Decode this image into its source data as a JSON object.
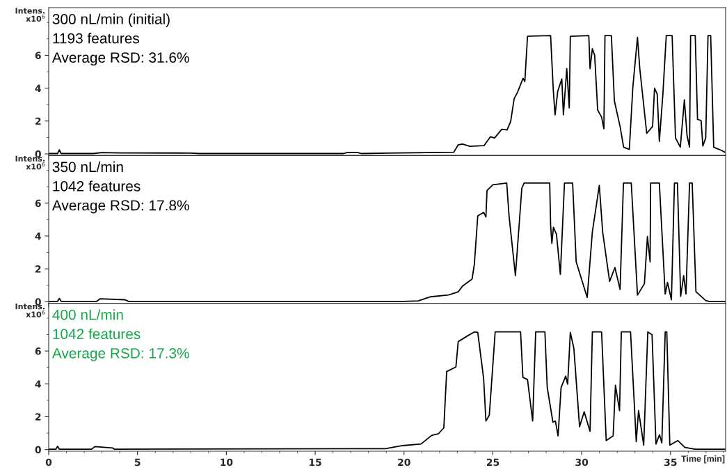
{
  "chart_data": [
    {
      "type": "line",
      "ylabel": "Intens.\nx10$^{6}$",
      "annotations": [
        "300 nL/min (initial)",
        "1193 features",
        "Average RSD: 31.6%"
      ],
      "xlim": [
        0,
        38.1
      ],
      "xticks": [
        0,
        5,
        10,
        15,
        20,
        25,
        30,
        35
      ],
      "ylim": [
        -0.1,
        8.9
      ],
      "yticks": [
        0,
        2,
        4,
        6
      ],
      "tick_labels": "y",
      "grid": false,
      "legend": false,
      "series": [
        {
          "color": "#000000",
          "x": [
            0,
            0.5,
            0.6,
            0.7,
            2.5,
            3,
            4,
            8,
            8.5,
            16.6,
            16.8,
            17.4,
            17.6,
            19.1,
            22.8,
            23.05,
            23.3,
            23.7,
            24.5,
            24.86,
            25.1,
            25.5,
            25.8,
            26.0,
            26.2,
            26.4,
            26.7,
            26.8,
            26.95,
            28.25,
            28.4,
            28.5,
            28.65,
            28.88,
            28.97,
            29.16,
            29.3,
            29.36,
            30.4,
            30.47,
            30.6,
            30.73,
            30.9,
            31.12,
            31.25,
            31.31,
            31.67,
            31.84,
            32.16,
            32.36,
            32.68,
            32.88,
            33.14,
            33.27,
            33.66,
            33.99,
            34.1,
            34.25,
            34.37,
            34.57,
            34.76,
            35.09,
            35.28,
            35.55,
            35.78,
            35.93,
            36.07,
            36.13,
            36.39,
            36.52,
            36.72,
            36.82,
            36.98,
            37.11,
            37.26,
            37.43,
            37.89,
            38.05
          ],
          "values": [
            0.02,
            0.02,
            0.25,
            0.02,
            0.02,
            0.08,
            0.06,
            0.05,
            0.02,
            0.02,
            0.08,
            0.08,
            0.02,
            0.05,
            0.1,
            0.55,
            0.6,
            0.46,
            0.5,
            1.04,
            0.97,
            1.5,
            1.46,
            1.96,
            3.36,
            3.78,
            4.6,
            4.4,
            7.16,
            7.2,
            3.9,
            2.38,
            3.8,
            4.56,
            2.38,
            5.19,
            2.8,
            7.16,
            7.2,
            5.19,
            6.4,
            6.0,
            2.66,
            2.24,
            1.53,
            7.2,
            7.2,
            3.22,
            1.67,
            0.41,
            0.27,
            4.07,
            7.09,
            5.19,
            1.25,
            1.67,
            4.0,
            3.64,
            0.76,
            3.64,
            7.2,
            7.2,
            0.97,
            0.41,
            3.29,
            1.11,
            0.41,
            7.2,
            7.2,
            2.1,
            2.03,
            0.48,
            0.97,
            7.2,
            7.2,
            0.41,
            0.2,
            0.1
          ]
        }
      ]
    },
    {
      "type": "line",
      "ylabel": "Intens.\nx10$^{6}$",
      "annotations": [
        "350 nL/min",
        "1042 features",
        "Average RSD: 17.8%"
      ],
      "xlim": [
        0,
        38.1
      ],
      "xticks": [
        0,
        5,
        10,
        15,
        20,
        25,
        30,
        35
      ],
      "ylim": [
        -0.1,
        8.9
      ],
      "yticks": [
        0,
        2,
        4,
        6
      ],
      "tick_labels": "y",
      "grid": false,
      "legend": false,
      "series": [
        {
          "color": "#000000",
          "x": [
            0,
            0.5,
            0.6,
            0.7,
            2.7,
            2.9,
            4.3,
            4.5,
            20.0,
            20.8,
            21.5,
            22.5,
            23.05,
            23.3,
            23.83,
            23.96,
            24.15,
            24.48,
            24.61,
            24.67,
            25.0,
            25.78,
            25.91,
            26.27,
            26.63,
            26.76,
            28.2,
            28.25,
            28.32,
            28.41,
            28.58,
            28.8,
            29.03,
            29.49,
            29.69,
            30.01,
            30.31,
            30.6,
            30.99,
            31.18,
            31.57,
            31.87,
            32.16,
            32.35,
            32.79,
            33.14,
            33.53,
            33.7,
            33.85,
            33.88,
            34.37,
            34.7,
            34.83,
            35.05,
            35.22,
            35.39,
            35.57,
            35.74,
            35.87,
            36.07,
            36.22,
            36.43,
            36.98,
            37.17,
            38.1
          ],
          "values": [
            0.02,
            0.02,
            0.2,
            0.02,
            0.02,
            0.18,
            0.12,
            0.02,
            0.02,
            0.05,
            0.3,
            0.41,
            0.6,
            0.96,
            1.38,
            2.29,
            5.23,
            5.44,
            5.16,
            6.77,
            7.12,
            7.22,
            5.23,
            1.59,
            6.91,
            7.22,
            7.22,
            4.67,
            3.55,
            4.53,
            4.11,
            1.66,
            7.22,
            7.22,
            2.43,
            1.31,
            0.26,
            4.25,
            7.08,
            4.25,
            1.24,
            2.08,
            0.75,
            7.22,
            7.22,
            0.4,
            1.1,
            3.97,
            2.43,
            7.22,
            7.22,
            0.47,
            1.17,
            0.12,
            7.22,
            7.22,
            0.33,
            1.59,
            0.47,
            7.22,
            7.22,
            0.61,
            0.07,
            0.02,
            0.02
          ]
        }
      ]
    },
    {
      "type": "line",
      "ylabel": "Intens.\nx10$^{6}$",
      "xlabel": "Time [min]",
      "annotations": [
        "400 nL/min",
        "1042 features",
        "Average RSD: 17.3%"
      ],
      "xlim": [
        0,
        38.1
      ],
      "xticks": [
        0,
        5,
        10,
        15,
        20,
        25,
        30,
        35
      ],
      "ylim": [
        -0.1,
        8.9
      ],
      "yticks": [
        0,
        2,
        4,
        6
      ],
      "grid": false,
      "legend": false,
      "series": [
        {
          "color": "#000000",
          "x": [
            0,
            0.4,
            0.5,
            0.6,
            2.4,
            2.6,
            3.6,
            3.7,
            19.0,
            19.92,
            20.96,
            21.55,
            21.94,
            22.24,
            22.4,
            22.92,
            23.05,
            23.57,
            23.96,
            24.15,
            24.48,
            24.61,
            24.8,
            25.13,
            26.56,
            26.69,
            26.95,
            27.24,
            27.41,
            27.93,
            28.06,
            28.38,
            28.52,
            28.67,
            28.84,
            29.1,
            29.21,
            29.36,
            29.56,
            29.88,
            30.14,
            30.47,
            30.6,
            31.12,
            31.38,
            31.77,
            31.9,
            32.13,
            32.23,
            32.75,
            33.07,
            33.2,
            33.49,
            33.72,
            33.96,
            34.18,
            34.38,
            34.51,
            34.7,
            34.79,
            34.96,
            35.41,
            35.81,
            36.39,
            38.1
          ],
          "values": [
            0.02,
            0.02,
            0.2,
            0.02,
            0.02,
            0.18,
            0.1,
            0.02,
            0.06,
            0.24,
            0.34,
            0.86,
            0.97,
            1.32,
            4.75,
            5.03,
            6.57,
            6.92,
            7.16,
            7.13,
            4.33,
            1.74,
            2.09,
            7.16,
            7.16,
            4.4,
            4.26,
            1.74,
            7.16,
            7.16,
            3.77,
            1.67,
            1.74,
            0.83,
            3.77,
            4.47,
            3.98,
            7.13,
            6.15,
            1.39,
            2.3,
            1.11,
            7.16,
            7.16,
            0.55,
            0.83,
            3.91,
            2.37,
            7.16,
            7.16,
            0.48,
            2.37,
            0.27,
            7.16,
            6.99,
            0.34,
            0.9,
            0.41,
            7.16,
            7.16,
            0.27,
            0.55,
            0.13,
            0.02,
            0.02
          ]
        }
      ]
    }
  ]
}
